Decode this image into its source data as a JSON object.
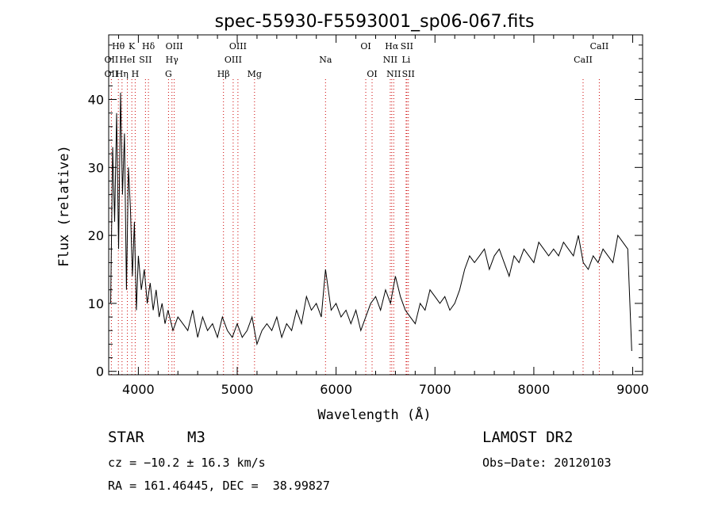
{
  "chart_data": {
    "type": "line",
    "title": "spec-55930-F5593001_sp06-067.fits",
    "xlabel": "Wavelength (Å)",
    "ylabel": "Flux (relative)",
    "xlim": [
      3700,
      9100
    ],
    "ylim": [
      -0.5,
      49.5
    ],
    "xticks": [
      4000,
      5000,
      6000,
      7000,
      8000,
      9000
    ],
    "yticks": [
      0,
      10,
      20,
      30,
      40
    ],
    "series": [
      {
        "x": [
          3720,
          3740,
          3760,
          3780,
          3800,
          3820,
          3840,
          3860,
          3880,
          3900,
          3920,
          3940,
          3960,
          3980,
          4000,
          4030,
          4060,
          4090,
          4120,
          4150,
          4180,
          4210,
          4240,
          4270,
          4300,
          4350,
          4400,
          4450,
          4500,
          4550,
          4600,
          4650,
          4700,
          4750,
          4800,
          4850,
          4900,
          4950,
          5000,
          5050,
          5100,
          5150,
          5200,
          5250,
          5300,
          5350,
          5400,
          5450,
          5500,
          5550,
          5600,
          5650,
          5700,
          5750,
          5800,
          5850,
          5893,
          5950,
          6000,
          6050,
          6100,
          6150,
          6200,
          6250,
          6300,
          6350,
          6400,
          6450,
          6500,
          6550,
          6600,
          6650,
          6700,
          6750,
          6800,
          6850,
          6900,
          6950,
          7000,
          7050,
          7100,
          7150,
          7200,
          7250,
          7300,
          7350,
          7400,
          7450,
          7500,
          7550,
          7600,
          7650,
          7700,
          7750,
          7800,
          7850,
          7900,
          7950,
          8000,
          8050,
          8100,
          8150,
          8200,
          8250,
          8300,
          8350,
          8400,
          8450,
          8500,
          8550,
          8600,
          8650,
          8700,
          8750,
          8800,
          8850,
          8900,
          8950,
          8990
        ],
        "y": [
          10,
          33,
          22,
          38,
          18,
          41,
          26,
          35,
          12,
          30,
          24,
          14,
          22,
          9,
          17,
          12,
          15,
          10,
          13,
          9,
          12,
          8,
          10,
          7,
          9,
          6,
          8,
          7,
          6,
          9,
          5,
          8,
          6,
          7,
          5,
          8,
          6,
          5,
          7,
          5,
          6,
          8,
          4,
          6,
          7,
          6,
          8,
          5,
          7,
          6,
          9,
          7,
          11,
          9,
          10,
          8,
          15,
          9,
          10,
          8,
          9,
          7,
          9,
          6,
          8,
          10,
          11,
          9,
          12,
          10,
          14,
          11,
          9,
          8,
          7,
          10,
          9,
          12,
          11,
          10,
          11,
          9,
          10,
          12,
          15,
          17,
          16,
          17,
          18,
          15,
          17,
          18,
          16,
          14,
          17,
          16,
          18,
          17,
          16,
          19,
          18,
          17,
          18,
          17,
          19,
          18,
          17,
          20,
          16,
          15,
          17,
          16,
          18,
          17,
          16,
          20,
          19,
          18,
          3
        ]
      }
    ],
    "spectral_lines": [
      {
        "label": "Hθ",
        "x": 3798,
        "row": 1
      },
      {
        "label": "K",
        "x": 3934,
        "row": 1
      },
      {
        "label": "Hδ",
        "x": 4102,
        "row": 1
      },
      {
        "label": "OIII",
        "x": 4363,
        "row": 1
      },
      {
        "label": "OIII",
        "x": 5007,
        "row": 1
      },
      {
        "label": "OI",
        "x": 6300,
        "row": 1
      },
      {
        "label": "Hα",
        "x": 6563,
        "row": 1
      },
      {
        "label": "SII",
        "x": 6716,
        "row": 1
      },
      {
        "label": "CaII",
        "x": 8662,
        "row": 1
      },
      {
        "label": "OII",
        "x": 3727,
        "row": 2
      },
      {
        "label": "HeI",
        "x": 3889,
        "row": 2
      },
      {
        "label": "SII",
        "x": 4072,
        "row": 2
      },
      {
        "label": "Hγ",
        "x": 4340,
        "row": 2
      },
      {
        "label": "OIII",
        "x": 4959,
        "row": 2
      },
      {
        "label": "Na",
        "x": 5893,
        "row": 2
      },
      {
        "label": "NII",
        "x": 6548,
        "row": 2
      },
      {
        "label": "Li",
        "x": 6708,
        "row": 2
      },
      {
        "label": "CaII",
        "x": 8498,
        "row": 2
      },
      {
        "label": "OII",
        "x": 3727,
        "row": 3
      },
      {
        "label": "Hη",
        "x": 3835,
        "row": 3
      },
      {
        "label": "H",
        "x": 3968,
        "row": 3
      },
      {
        "label": "G",
        "x": 4305,
        "row": 3
      },
      {
        "label": "Hβ",
        "x": 4861,
        "row": 3
      },
      {
        "label": "Mg",
        "x": 5175,
        "row": 3
      },
      {
        "label": "OI",
        "x": 6364,
        "row": 3
      },
      {
        "label": "NII",
        "x": 6583,
        "row": 3
      },
      {
        "label": "SII",
        "x": 6731,
        "row": 3
      }
    ],
    "line_marker_color": "#cc0000",
    "grid": false,
    "legend": "none"
  },
  "info": {
    "object_class": "STAR",
    "subclass": "M3",
    "survey": "LAMOST DR2",
    "velocity": "cz = −10.2 ± 16.3 km/s",
    "obs_date": "Obs−Date: 20120103",
    "coords": "RA = 161.46445, DEC =  38.99827"
  }
}
